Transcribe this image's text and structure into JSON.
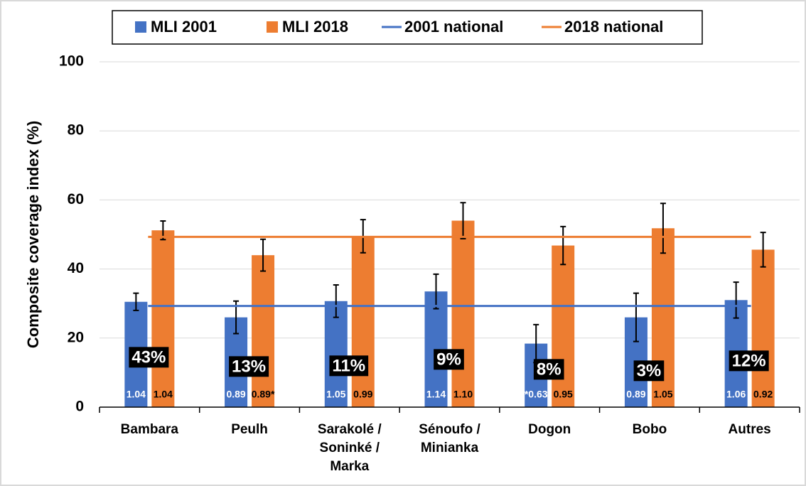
{
  "chart_data": {
    "type": "bar",
    "y_label": "Composite coverage index (%)",
    "categories": [
      "Bambara",
      "Peulh",
      "Sarakolé / Soninké / Marka",
      "Sénoufo / Minianka",
      "Dogon",
      "Bobo",
      "Autres"
    ],
    "series": [
      {
        "name": "MLI 2001",
        "color": "#4472c4",
        "values": [
          30.5,
          26,
          30.7,
          33.5,
          18.4,
          26,
          31
        ],
        "errors": [
          2.5,
          4.7,
          4.7,
          5,
          5.5,
          7,
          5.2
        ],
        "ratio_labels": [
          "1.04",
          "0.89",
          "1.05",
          "1.14",
          "*0.63",
          "0.89",
          "1.06"
        ]
      },
      {
        "name": "MLI 2018",
        "color": "#ed7d31",
        "values": [
          51.2,
          44,
          49.5,
          54,
          46.8,
          51.8,
          45.6
        ],
        "errors": [
          2.7,
          4.6,
          4.8,
          5.2,
          5.5,
          7.2,
          5
        ],
        "ratio_labels": [
          "1.04",
          "0.89*",
          "0.99",
          "1.10",
          "0.95",
          "1.05",
          "0.92"
        ]
      }
    ],
    "reference_lines": [
      {
        "name": "2001 national",
        "color": "#4472c4",
        "value": 29.3
      },
      {
        "name": "2018 national",
        "color": "#ed7d31",
        "value": 49.3
      }
    ],
    "annotations": [
      "43%",
      "13%",
      "11%",
      "9%",
      "8%",
      "3%",
      "12%"
    ],
    "ylim": [
      0,
      100
    ],
    "yticks": [
      0,
      20,
      40,
      60,
      80,
      100
    ],
    "grid": true
  }
}
